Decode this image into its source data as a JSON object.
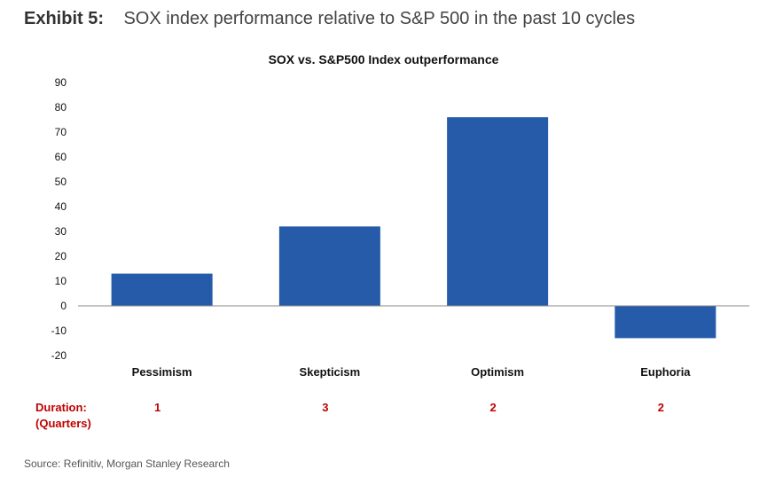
{
  "header": {
    "exhibit": "Exhibit 5:",
    "title": "SOX index performance relative to S&P 500 in the past 10 cycles"
  },
  "chart_data": {
    "type": "bar",
    "title": "SOX vs. S&P500 Index outperformance",
    "categories": [
      "Pessimism",
      "Skepticism",
      "Optimism",
      "Euphoria"
    ],
    "values": [
      13,
      32,
      76,
      -13
    ],
    "ylim": [
      -20,
      90
    ],
    "yticks": [
      90,
      80,
      70,
      60,
      50,
      40,
      30,
      20,
      10,
      0,
      -10,
      -20
    ],
    "bar_color": "#255ba8",
    "grid": false,
    "duration": {
      "label_line1": "Duration:",
      "label_line2": "(Quarters)",
      "values": [
        "1",
        "3",
        "2",
        "2"
      ],
      "color": "#c00000"
    }
  },
  "footer": {
    "source": "Source: Refinitiv, Morgan Stanley Research"
  }
}
